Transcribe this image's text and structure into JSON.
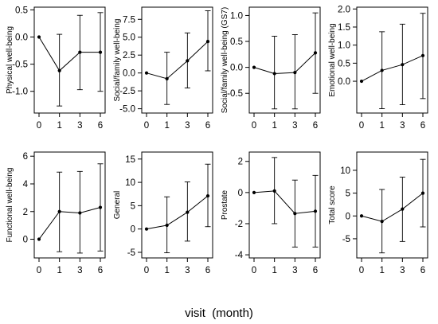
{
  "figure": {
    "xlabel": "visit  (month)"
  },
  "chart_data": [
    {
      "type": "line",
      "ylabel": "Physical well-being",
      "x": [
        0,
        1,
        3,
        6
      ],
      "xlim": [
        0,
        6
      ],
      "yticks": [
        0.5,
        0.0,
        -0.5,
        -1.0
      ],
      "ytick_labels": [
        "0.5",
        "0.0",
        "-0.5",
        "-1.0"
      ],
      "ylim": [
        -1.4,
        0.55
      ],
      "mean": [
        0.0,
        -0.62,
        -0.28,
        -0.28
      ],
      "lower": [
        0.0,
        -1.27,
        -0.97,
        -1.0
      ],
      "upper": [
        0.0,
        0.05,
        0.4,
        0.45
      ]
    },
    {
      "type": "line",
      "ylabel": "Social/family well-being",
      "x": [
        0,
        1,
        3,
        6
      ],
      "xlim": [
        0,
        6
      ],
      "yticks": [
        7.5,
        5.0,
        2.5,
        0.0,
        -2.5,
        -5.0
      ],
      "ytick_labels": [
        "7.5",
        "5.0",
        "2.5",
        "0.0",
        "-2.5",
        "-5.0"
      ],
      "ylim": [
        -5.6,
        9.2
      ],
      "mean": [
        0.0,
        -0.8,
        1.7,
        4.4
      ],
      "lower": [
        0.0,
        -4.4,
        -2.1,
        0.3
      ],
      "upper": [
        0.0,
        2.9,
        5.6,
        8.7
      ]
    },
    {
      "type": "line",
      "ylabel": "Social/family well-being (GS7)",
      "x": [
        0,
        1,
        3,
        6
      ],
      "xlim": [
        0,
        6
      ],
      "yticks": [
        1.0,
        0.5,
        0.0,
        -0.5
      ],
      "ytick_labels": [
        "1.0",
        "0.5",
        "0.0",
        "-0.5"
      ],
      "ylim": [
        -0.88,
        1.16
      ],
      "mean": [
        0.0,
        -0.12,
        -0.1,
        0.28
      ],
      "lower": [
        0.0,
        -0.8,
        -0.8,
        -0.5
      ],
      "upper": [
        0.0,
        0.6,
        0.63,
        1.05
      ]
    },
    {
      "type": "line",
      "ylabel": "Emotional well-being",
      "x": [
        0,
        1,
        3,
        6
      ],
      "xlim": [
        0,
        6
      ],
      "yticks": [
        2.0,
        1.5,
        1.0,
        0.5,
        0.0
      ],
      "ytick_labels": [
        "2.0",
        "1.5",
        "1.0",
        "0.5",
        "0.0"
      ],
      "ylim": [
        -0.88,
        2.05
      ],
      "mean": [
        0.0,
        0.3,
        0.46,
        0.71
      ],
      "lower": [
        0.0,
        -0.76,
        -0.65,
        -0.48
      ],
      "upper": [
        0.0,
        1.37,
        1.58,
        1.88
      ]
    },
    {
      "type": "line",
      "ylabel": "Functional well-being",
      "x": [
        0,
        1,
        3,
        6
      ],
      "xlim": [
        0,
        6
      ],
      "yticks": [
        6,
        4,
        2,
        0
      ],
      "ytick_labels": [
        "6",
        "4",
        "2",
        "0"
      ],
      "ylim": [
        -1.35,
        6.3
      ],
      "mean": [
        0.0,
        2.0,
        1.9,
        2.3
      ],
      "lower": [
        0.0,
        -0.9,
        -1.0,
        -0.85
      ],
      "upper": [
        0.0,
        4.85,
        4.9,
        5.45
      ]
    },
    {
      "type": "line",
      "ylabel": "General",
      "x": [
        0,
        1,
        3,
        6
      ],
      "xlim": [
        0,
        6
      ],
      "yticks": [
        15,
        10,
        5,
        0,
        -5
      ],
      "ytick_labels": [
        "15",
        "10",
        "5",
        "0",
        "-5"
      ],
      "ylim": [
        -6.2,
        16.5
      ],
      "mean": [
        0.0,
        0.8,
        3.6,
        7.1
      ],
      "lower": [
        0.0,
        -5.1,
        -2.6,
        0.5
      ],
      "upper": [
        0.0,
        6.9,
        10.1,
        13.9
      ]
    },
    {
      "type": "line",
      "ylabel": "Prostate",
      "x": [
        0,
        1,
        3,
        6
      ],
      "xlim": [
        0,
        6
      ],
      "yticks": [
        2,
        0,
        -2,
        -4
      ],
      "ytick_labels": [
        "2",
        "0",
        "-2",
        "-4"
      ],
      "ylim": [
        -4.2,
        2.6
      ],
      "mean": [
        0.0,
        0.1,
        -1.35,
        -1.2
      ],
      "lower": [
        0.0,
        -2.0,
        -3.5,
        -3.5
      ],
      "upper": [
        0.0,
        2.25,
        0.8,
        1.1
      ]
    },
    {
      "type": "line",
      "ylabel": "Total score",
      "x": [
        0,
        1,
        3,
        6
      ],
      "xlim": [
        0,
        6
      ],
      "yticks": [
        10,
        5,
        0,
        -5
      ],
      "ytick_labels": [
        "10",
        "5",
        "0",
        "-5"
      ],
      "ylim": [
        -9.2,
        14.0
      ],
      "mean": [
        0.0,
        -1.2,
        1.5,
        5.0
      ],
      "lower": [
        0.0,
        -8.1,
        -5.6,
        -2.4
      ],
      "upper": [
        0.0,
        5.8,
        8.5,
        12.4
      ]
    }
  ]
}
